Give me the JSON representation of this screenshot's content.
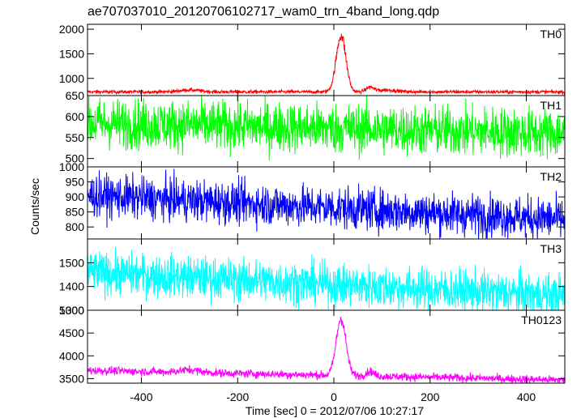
{
  "chart_data": {
    "type": "line",
    "title": "ae707037010_20120706102717_wam0_trn_4band_long.qdp",
    "xlabel": "Time [sec] 0 = 2012/07/06 10:27:17",
    "ylabel": "Counts/sec",
    "xlim": [
      -512,
      480
    ],
    "xticks": [
      -400,
      -200,
      0,
      200,
      400
    ],
    "grid": false,
    "panels": [
      {
        "name": "TH0",
        "color": "#ff0000",
        "ylim": [
          650,
          2100
        ],
        "yticks": [
          1000,
          1500,
          2000
        ],
        "extra_tick_labels": [
          650
        ],
        "baseline": 730,
        "noise": 18,
        "trend": [
          [
            -512,
            725
          ],
          [
            480,
            725
          ]
        ],
        "features": [
          {
            "center": 15,
            "width": 10,
            "amp": 1150
          },
          {
            "center": 75,
            "width": 8,
            "amp": 90
          },
          {
            "center": 110,
            "width": 20,
            "amp": 40
          },
          {
            "center": -300,
            "width": 20,
            "amp": 40
          }
        ]
      },
      {
        "name": "TH1",
        "color": "#00ff00",
        "ylim": [
          480,
          650
        ],
        "yticks": [
          500,
          550,
          600
        ],
        "extra_tick_labels": [],
        "baseline": 572,
        "noise": 30,
        "trend": [
          [
            -512,
            585
          ],
          [
            480,
            560
          ]
        ],
        "features": []
      },
      {
        "name": "TH2",
        "color": "#0000ff",
        "ylim": [
          760,
          1000
        ],
        "yticks": [
          800,
          850,
          900,
          950
        ],
        "extra_tick_labels": [
          1000
        ],
        "baseline": 870,
        "noise": 35,
        "trend": [
          [
            -512,
            905
          ],
          [
            480,
            825
          ]
        ],
        "features": []
      },
      {
        "name": "TH3",
        "color": "#00ffff",
        "ylim": [
          1300,
          1600
        ],
        "yticks": [
          1400,
          1500
        ],
        "extra_tick_labels": [
          1300
        ],
        "baseline": 1420,
        "noise": 45,
        "trend": [
          [
            -512,
            1460
          ],
          [
            480,
            1360
          ]
        ],
        "features": []
      },
      {
        "name": "TH0123",
        "color": "#ff00ff",
        "ylim": [
          3400,
          5000
        ],
        "yticks": [
          3500,
          4000,
          4500
        ],
        "extra_tick_labels": [
          5000
        ],
        "baseline": 3650,
        "noise": 45,
        "trend": [
          [
            -512,
            3680
          ],
          [
            480,
            3470
          ]
        ],
        "features": [
          {
            "center": 15,
            "width": 10,
            "amp": 1250
          },
          {
            "center": 75,
            "width": 8,
            "amp": 100
          },
          {
            "center": -300,
            "width": 20,
            "amp": 60
          }
        ]
      }
    ]
  }
}
